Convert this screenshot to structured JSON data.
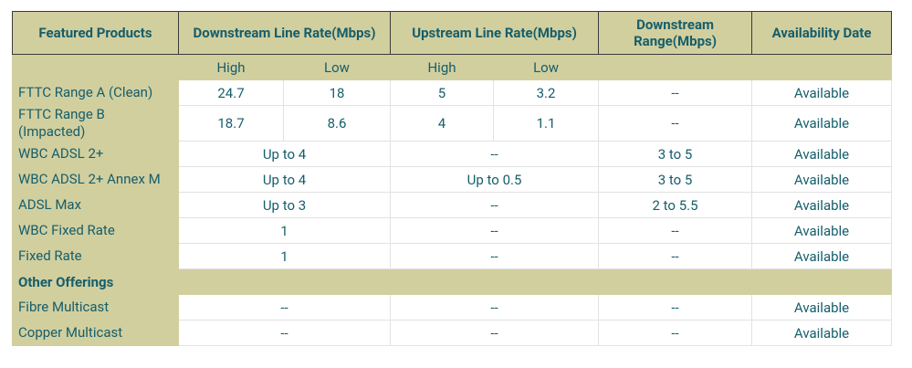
{
  "table": {
    "header": [
      "Featured Products",
      "Downstream Line Rate(Mbps)",
      "Upstream Line Rate(Mbps)",
      "Downstream Range(Mbps)",
      "Availability Date"
    ],
    "subheader": [
      "High",
      "Low",
      "High",
      "Low"
    ],
    "rows": [
      [
        "FTTC Range A (Clean)",
        "24.7",
        "18",
        "5",
        "3.2",
        "--",
        "Available"
      ],
      [
        "FTTC Range B (Impacted)",
        "18.7",
        "8.6",
        "4",
        "1.1",
        "--",
        "Available"
      ],
      [
        "WBC ADSL 2+",
        "Up to 4",
        "--",
        "3 to 5",
        "Available"
      ],
      [
        "WBC ADSL 2+ Annex M",
        "Up to 4",
        "Up to 0.5",
        "3 to 5",
        "Available"
      ],
      [
        "ADSL Max",
        "Up to 3",
        "--",
        "2 to 5.5",
        "Available"
      ],
      [
        "WBC Fixed Rate",
        "1",
        "--",
        "--",
        "Available"
      ],
      [
        "Fixed Rate",
        "1",
        "--",
        "--",
        "Available"
      ],
      [
        "Other Offerings"
      ],
      [
        "Fibre Multicast",
        "--",
        "--",
        "--",
        "Available"
      ],
      [
        "Copper Multicast",
        "--",
        "--",
        "--",
        "Available"
      ]
    ]
  }
}
